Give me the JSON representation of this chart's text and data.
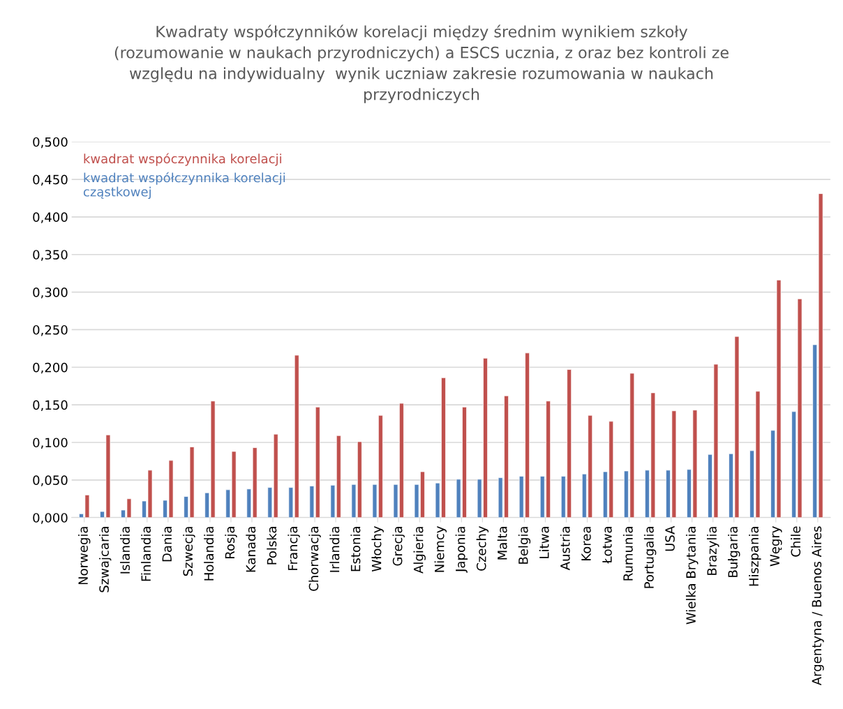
{
  "chart_data": {
    "type": "bar",
    "title": "Kwadraty współczynników korelacji między średnim wynikiem szkoły\n(rozumowanie w naukach przyrodniczych) a ESCS ucznia, z oraz bez kontroli ze\nwzględu na indywidualny  wynik uczniaw zakresie rozumowania w naukach\nprzyrodniczych",
    "categories": [
      "Norwegia",
      "Szwajcaria",
      "Islandia",
      "Finlandia",
      "Dania",
      "Szwecja",
      "Holandia",
      "Rosja",
      "Kanada",
      "Polska",
      "Francja",
      "Chorwacja",
      "Irlandia",
      "Estonia",
      "Włochy",
      "Grecja",
      "Algieria",
      "Niemcy",
      "Japonia",
      "Czechy",
      "Malta",
      "Belgia",
      "Litwa",
      "Austria",
      "Korea",
      "Łotwa",
      "Rumunia",
      "Portugalia",
      "USA",
      "Wielka Brytania",
      "Brazylia",
      "Bułgaria",
      "Hiszpania",
      "Węgry",
      "Chile",
      "Argentyna / Buenos Aires"
    ],
    "series": [
      {
        "name": "kwadrat współczynnika korelacji\ncząstkowej",
        "color": "#4f81bd",
        "values": [
          0.005,
          0.008,
          0.01,
          0.022,
          0.023,
          0.028,
          0.033,
          0.037,
          0.038,
          0.04,
          0.04,
          0.042,
          0.043,
          0.044,
          0.044,
          0.044,
          0.044,
          0.046,
          0.051,
          0.051,
          0.053,
          0.055,
          0.055,
          0.055,
          0.058,
          0.061,
          0.062,
          0.063,
          0.063,
          0.064,
          0.084,
          0.085,
          0.089,
          0.116,
          0.141,
          0.23
        ]
      },
      {
        "name": "kwadrat wspóczynnika korelacji",
        "color": "#c0504d",
        "values": [
          0.03,
          0.11,
          0.025,
          0.063,
          0.076,
          0.094,
          0.155,
          0.088,
          0.093,
          0.111,
          0.216,
          0.147,
          0.109,
          0.101,
          0.136,
          0.152,
          0.061,
          0.186,
          0.147,
          0.212,
          0.162,
          0.219,
          0.155,
          0.197,
          0.136,
          0.128,
          0.192,
          0.166,
          0.142,
          0.143,
          0.204,
          0.241,
          0.168,
          0.316,
          0.291,
          0.431
        ]
      }
    ],
    "ylim": [
      0,
      0.5
    ],
    "yticks": [
      {
        "value": 0,
        "label": "0,000"
      },
      {
        "value": 0.05,
        "label": "0,050"
      },
      {
        "value": 0.1,
        "label": "0,100"
      },
      {
        "value": 0.15,
        "label": "0,150"
      },
      {
        "value": 0.2,
        "label": "0,200"
      },
      {
        "value": 0.25,
        "label": "0,250"
      },
      {
        "value": 0.3,
        "label": "0,300"
      },
      {
        "value": 0.35,
        "label": "0,350"
      },
      {
        "value": 0.4,
        "label": "0,400"
      },
      {
        "value": 0.45,
        "label": "0,450"
      },
      {
        "value": 0.5,
        "label": "0,500"
      }
    ],
    "grid": "y",
    "legend": "top left"
  }
}
